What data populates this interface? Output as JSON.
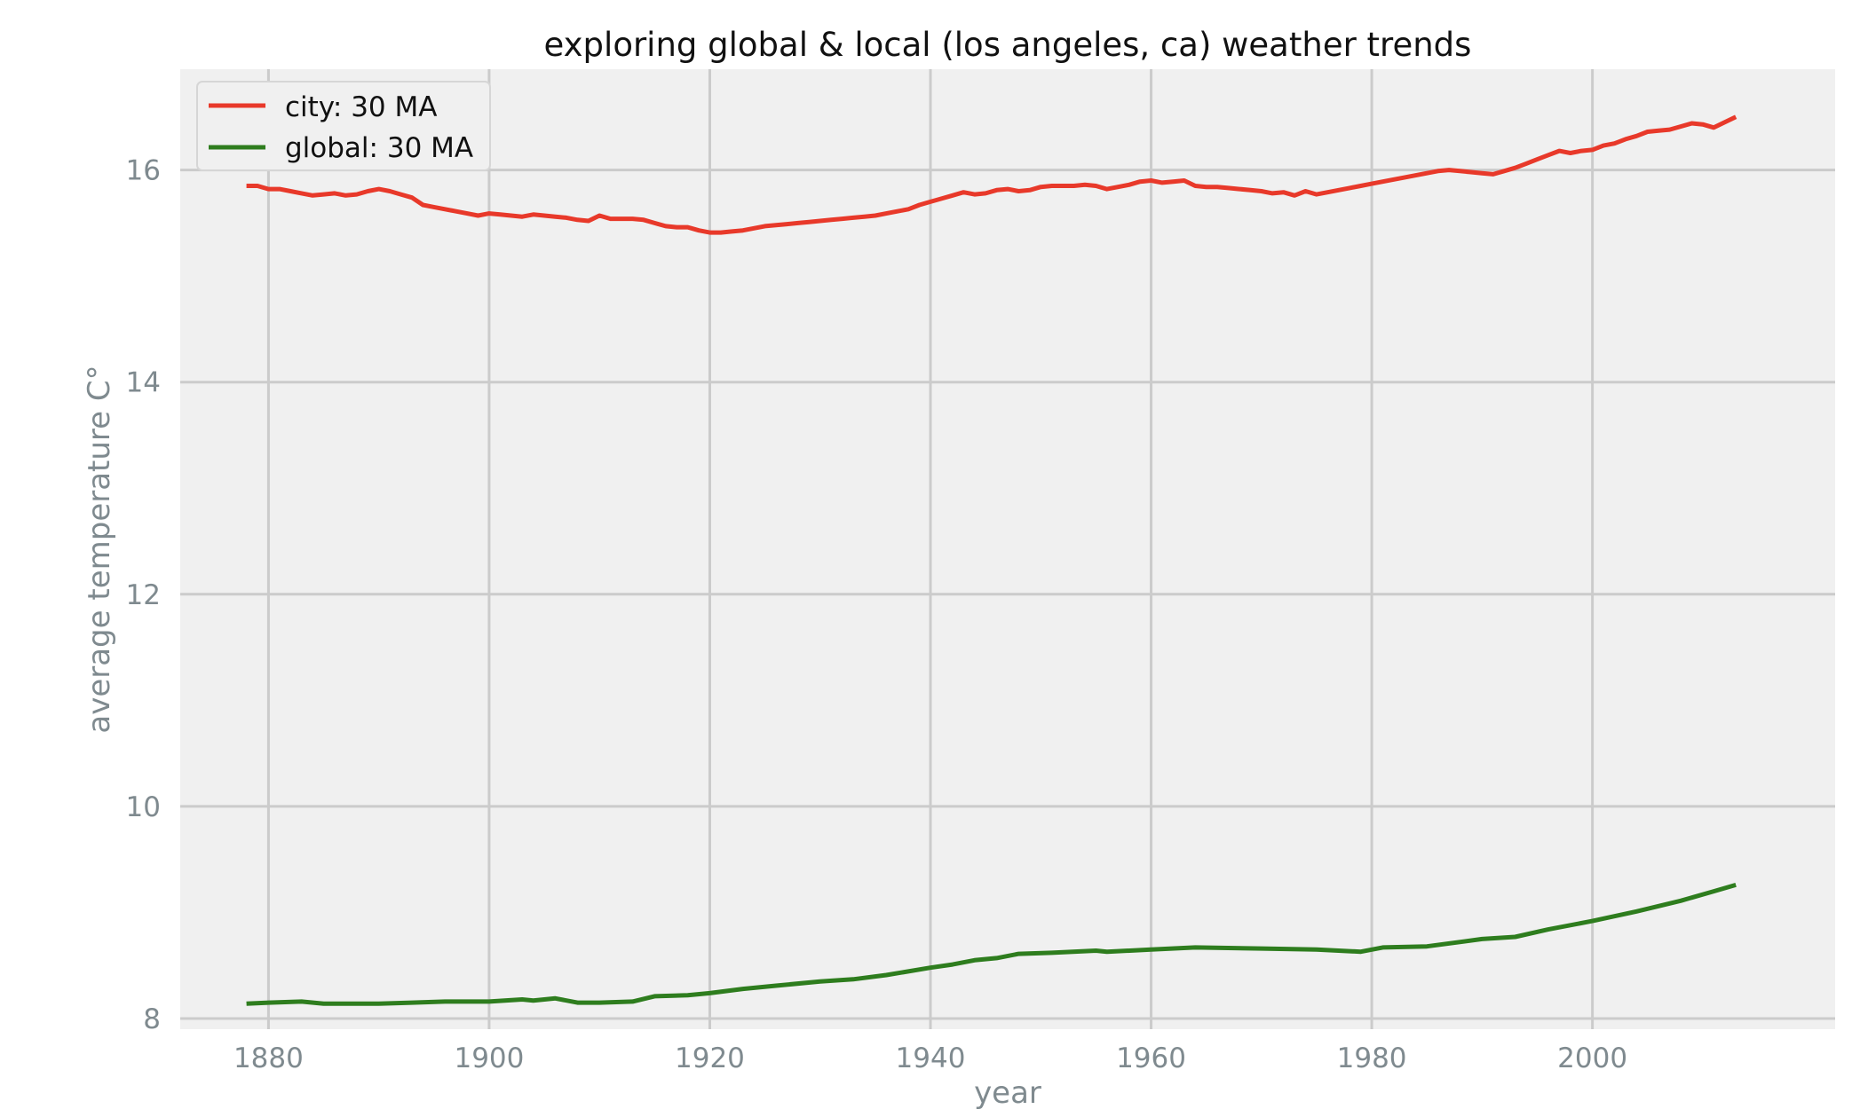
{
  "chart_data": {
    "type": "line",
    "title": "exploring global & local (los angeles, ca) weather trends",
    "xlabel": "year",
    "ylabel": "average temperature C°",
    "xlim": [
      1872,
      2022
    ],
    "ylim": [
      7.9,
      16.95
    ],
    "x_ticks": [
      1880,
      1900,
      1920,
      1940,
      1960,
      1980,
      2000
    ],
    "y_ticks": [
      8,
      10,
      12,
      14,
      16
    ],
    "grid": true,
    "legend_position": "top-left",
    "series": [
      {
        "name": "city: 30 MA",
        "color": "#e8392a",
        "points": [
          [
            1878,
            15.85
          ],
          [
            1879,
            15.85
          ],
          [
            1880,
            15.82
          ],
          [
            1881,
            15.82
          ],
          [
            1882,
            15.8
          ],
          [
            1883,
            15.78
          ],
          [
            1884,
            15.76
          ],
          [
            1885,
            15.77
          ],
          [
            1886,
            15.78
          ],
          [
            1887,
            15.76
          ],
          [
            1888,
            15.77
          ],
          [
            1889,
            15.8
          ],
          [
            1890,
            15.82
          ],
          [
            1891,
            15.8
          ],
          [
            1892,
            15.77
          ],
          [
            1893,
            15.74
          ],
          [
            1894,
            15.67
          ],
          [
            1895,
            15.65
          ],
          [
            1896,
            15.63
          ],
          [
            1897,
            15.61
          ],
          [
            1898,
            15.59
          ],
          [
            1899,
            15.57
          ],
          [
            1900,
            15.59
          ],
          [
            1901,
            15.58
          ],
          [
            1902,
            15.57
          ],
          [
            1903,
            15.56
          ],
          [
            1904,
            15.58
          ],
          [
            1905,
            15.57
          ],
          [
            1906,
            15.56
          ],
          [
            1907,
            15.55
          ],
          [
            1908,
            15.53
          ],
          [
            1909,
            15.52
          ],
          [
            1910,
            15.57
          ],
          [
            1911,
            15.54
          ],
          [
            1912,
            15.54
          ],
          [
            1913,
            15.54
          ],
          [
            1914,
            15.53
          ],
          [
            1915,
            15.5
          ],
          [
            1916,
            15.47
          ],
          [
            1917,
            15.46
          ],
          [
            1918,
            15.46
          ],
          [
            1919,
            15.43
          ],
          [
            1920,
            15.41
          ],
          [
            1921,
            15.41
          ],
          [
            1922,
            15.42
          ],
          [
            1923,
            15.43
          ],
          [
            1924,
            15.45
          ],
          [
            1925,
            15.47
          ],
          [
            1926,
            15.48
          ],
          [
            1927,
            15.49
          ],
          [
            1928,
            15.5
          ],
          [
            1929,
            15.51
          ],
          [
            1930,
            15.52
          ],
          [
            1931,
            15.53
          ],
          [
            1932,
            15.54
          ],
          [
            1933,
            15.55
          ],
          [
            1934,
            15.56
          ],
          [
            1935,
            15.57
          ],
          [
            1936,
            15.59
          ],
          [
            1937,
            15.61
          ],
          [
            1938,
            15.63
          ],
          [
            1939,
            15.67
          ],
          [
            1940,
            15.7
          ],
          [
            1941,
            15.73
          ],
          [
            1942,
            15.76
          ],
          [
            1943,
            15.79
          ],
          [
            1944,
            15.77
          ],
          [
            1945,
            15.78
          ],
          [
            1946,
            15.81
          ],
          [
            1947,
            15.82
          ],
          [
            1948,
            15.8
          ],
          [
            1949,
            15.81
          ],
          [
            1950,
            15.84
          ],
          [
            1951,
            15.85
          ],
          [
            1952,
            15.85
          ],
          [
            1953,
            15.85
          ],
          [
            1954,
            15.86
          ],
          [
            1955,
            15.85
          ],
          [
            1956,
            15.82
          ],
          [
            1957,
            15.84
          ],
          [
            1958,
            15.86
          ],
          [
            1959,
            15.89
          ],
          [
            1960,
            15.9
          ],
          [
            1961,
            15.88
          ],
          [
            1962,
            15.89
          ],
          [
            1963,
            15.9
          ],
          [
            1964,
            15.85
          ],
          [
            1965,
            15.84
          ],
          [
            1966,
            15.84
          ],
          [
            1967,
            15.83
          ],
          [
            1968,
            15.82
          ],
          [
            1969,
            15.81
          ],
          [
            1970,
            15.8
          ],
          [
            1971,
            15.78
          ],
          [
            1972,
            15.79
          ],
          [
            1973,
            15.76
          ],
          [
            1974,
            15.8
          ],
          [
            1975,
            15.77
          ],
          [
            1976,
            15.79
          ],
          [
            1977,
            15.81
          ],
          [
            1978,
            15.83
          ],
          [
            1979,
            15.85
          ],
          [
            1980,
            15.87
          ],
          [
            1981,
            15.89
          ],
          [
            1982,
            15.91
          ],
          [
            1983,
            15.93
          ],
          [
            1984,
            15.95
          ],
          [
            1985,
            15.97
          ],
          [
            1986,
            15.99
          ],
          [
            1987,
            16.0
          ],
          [
            1988,
            15.99
          ],
          [
            1989,
            15.98
          ],
          [
            1990,
            15.97
          ],
          [
            1991,
            15.96
          ],
          [
            1992,
            15.99
          ],
          [
            1993,
            16.02
          ],
          [
            1994,
            16.06
          ],
          [
            1995,
            16.1
          ],
          [
            1996,
            16.14
          ],
          [
            1997,
            16.18
          ],
          [
            1998,
            16.16
          ],
          [
            1999,
            16.18
          ],
          [
            2000,
            16.19
          ],
          [
            2001,
            16.23
          ],
          [
            2002,
            16.25
          ],
          [
            2003,
            16.29
          ],
          [
            2004,
            16.32
          ],
          [
            2005,
            16.36
          ],
          [
            2006,
            16.37
          ],
          [
            2007,
            16.38
          ],
          [
            2008,
            16.41
          ],
          [
            2009,
            16.44
          ],
          [
            2010,
            16.43
          ],
          [
            2011,
            16.4
          ],
          [
            2012,
            16.45
          ],
          [
            2013,
            16.5
          ]
        ]
      },
      {
        "name": "global: 30 MA",
        "color": "#2e7d1e",
        "points": [
          [
            1878,
            8.14
          ],
          [
            1880,
            8.15
          ],
          [
            1883,
            8.16
          ],
          [
            1885,
            8.14
          ],
          [
            1890,
            8.14
          ],
          [
            1893,
            8.15
          ],
          [
            1896,
            8.16
          ],
          [
            1900,
            8.16
          ],
          [
            1903,
            8.18
          ],
          [
            1904,
            8.17
          ],
          [
            1906,
            8.19
          ],
          [
            1908,
            8.15
          ],
          [
            1910,
            8.15
          ],
          [
            1913,
            8.16
          ],
          [
            1915,
            8.21
          ],
          [
            1918,
            8.22
          ],
          [
            1920,
            8.24
          ],
          [
            1923,
            8.28
          ],
          [
            1926,
            8.31
          ],
          [
            1930,
            8.35
          ],
          [
            1933,
            8.37
          ],
          [
            1936,
            8.41
          ],
          [
            1940,
            8.48
          ],
          [
            1942,
            8.51
          ],
          [
            1944,
            8.55
          ],
          [
            1946,
            8.57
          ],
          [
            1948,
            8.61
          ],
          [
            1951,
            8.62
          ],
          [
            1955,
            8.64
          ],
          [
            1956,
            8.63
          ],
          [
            1960,
            8.65
          ],
          [
            1964,
            8.67
          ],
          [
            1970,
            8.66
          ],
          [
            1975,
            8.65
          ],
          [
            1979,
            8.63
          ],
          [
            1981,
            8.67
          ],
          [
            1985,
            8.68
          ],
          [
            1990,
            8.75
          ],
          [
            1993,
            8.77
          ],
          [
            1996,
            8.84
          ],
          [
            2000,
            8.92
          ],
          [
            2004,
            9.01
          ],
          [
            2008,
            9.11
          ],
          [
            2011,
            9.2
          ],
          [
            2013,
            9.26
          ]
        ]
      }
    ]
  }
}
